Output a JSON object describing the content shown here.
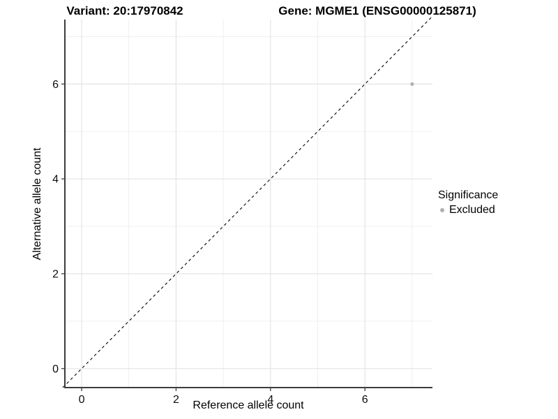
{
  "chart_data": {
    "type": "scatter",
    "titles": {
      "left": "Variant: 20:17970842",
      "right": "Gene: MGME1 (ENSG00000125871)"
    },
    "xlabel": "Reference allele count",
    "ylabel": "Alternative allele count",
    "xlim": [
      -0.355,
      7.43
    ],
    "ylim": [
      -0.4,
      7.36
    ],
    "x_major_ticks": [
      0,
      2,
      4,
      6
    ],
    "y_major_ticks": [
      0,
      2,
      4,
      6
    ],
    "x_minor_gridlines": [
      1,
      3,
      5,
      7
    ],
    "y_minor_gridlines": [
      1,
      3,
      5,
      7
    ],
    "grid": "on",
    "identity_line": {
      "style": "dashed",
      "color": "#000000",
      "from": [
        -0.4,
        -0.4
      ],
      "to": [
        7.43,
        7.43
      ]
    },
    "series": [
      {
        "name": "Excluded",
        "color": "#b0b0b0",
        "points": [
          [
            7,
            6
          ]
        ]
      }
    ],
    "legend": {
      "title": "Significance",
      "position": "right",
      "items": [
        {
          "label": "Excluded",
          "color": "#b0b0b0"
        }
      ]
    },
    "colors": {
      "background": "#ffffff",
      "grid_major": "#e4e4e4",
      "grid_minor": "#ededed",
      "axis_line": "#3c3c3c",
      "tick_text": "#0d0d0d",
      "point": "#b0b0b0"
    }
  }
}
